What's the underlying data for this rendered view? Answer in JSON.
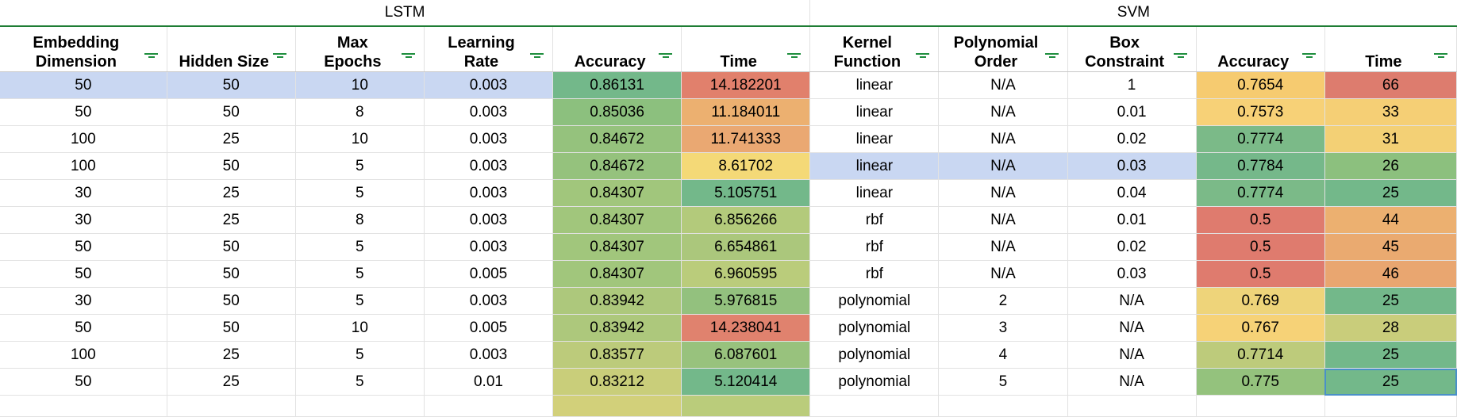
{
  "groups": [
    {
      "label": "LSTM",
      "span": 6
    },
    {
      "label": "SVM",
      "span": 5
    }
  ],
  "headers": [
    {
      "line1": "Embedding",
      "line2": "Dimension"
    },
    {
      "line1": "",
      "line2": "Hidden Size"
    },
    {
      "line1": "Max",
      "line2": "Epochs"
    },
    {
      "line1": "Learning",
      "line2": "Rate"
    },
    {
      "line1": "",
      "line2": "Accuracy"
    },
    {
      "line1": "",
      "line2": "Time"
    },
    {
      "line1": "Kernel",
      "line2": "Function"
    },
    {
      "line1": "Polynomial",
      "line2": "Order"
    },
    {
      "line1": "Box",
      "line2": "Constraint"
    },
    {
      "line1": "",
      "line2": "Accuracy"
    },
    {
      "line1": "",
      "line2": "Time"
    }
  ],
  "icons": {
    "filter": "filter-icon"
  },
  "colors": {
    "selection_fill": "#c9d7f2",
    "filter_icon": "#1e8e3e",
    "group_underline": "#1e7d34",
    "cell_outline": "#4a90c8"
  },
  "rows": [
    {
      "cells": [
        "50",
        "50",
        "10",
        "0.003",
        "0.86131",
        "14.182201",
        "linear",
        "N/A",
        "1",
        "0.7654",
        "66"
      ],
      "bg": [
        "#c9d7f2",
        "#c9d7f2",
        "#c9d7f2",
        "#c9d7f2",
        "#73b88a",
        "#e1806c",
        "",
        "",
        "",
        "#f6cb70",
        "#dd7c6e"
      ]
    },
    {
      "cells": [
        "50",
        "50",
        "8",
        "0.003",
        "0.85036",
        "11.184011",
        "linear",
        "N/A",
        "0.01",
        "0.7573",
        "33"
      ],
      "bg": [
        "",
        "",
        "",
        "",
        "#8cc07e",
        "#ecb070",
        "",
        "",
        "",
        "#f7d177",
        "#f5cf75"
      ]
    },
    {
      "cells": [
        "100",
        "25",
        "10",
        "0.003",
        "0.84672",
        "11.741333",
        "linear",
        "N/A",
        "0.02",
        "0.7774",
        "31"
      ],
      "bg": [
        "",
        "",
        "",
        "",
        "#95c27d",
        "#eaa872",
        "",
        "",
        "",
        "#7bba88",
        "#f3d075"
      ]
    },
    {
      "cells": [
        "100",
        "50",
        "5",
        "0.003",
        "0.84672",
        "8.61702",
        "linear",
        "N/A",
        "0.03",
        "0.7784",
        "26"
      ],
      "bg": [
        "",
        "",
        "",
        "",
        "#95c27d",
        "#f4d977",
        "#c9d7f2",
        "#c9d7f2",
        "#c9d7f2",
        "#75b88a",
        "#8cc07e"
      ]
    },
    {
      "cells": [
        "30",
        "25",
        "5",
        "0.003",
        "0.84307",
        "5.105751",
        "linear",
        "N/A",
        "0.04",
        "0.7774",
        "25"
      ],
      "bg": [
        "",
        "",
        "",
        "",
        "#a1c67c",
        "#73b88a",
        "",
        "",
        "",
        "#7bba88",
        "#73b88a"
      ]
    },
    {
      "cells": [
        "30",
        "25",
        "8",
        "0.003",
        "0.84307",
        "6.856266",
        "rbf",
        "N/A",
        "0.01",
        "0.5",
        "44"
      ],
      "bg": [
        "",
        "",
        "",
        "",
        "#a1c67c",
        "#b3ca7b",
        "",
        "",
        "",
        "#df7b6e",
        "#ecb070"
      ]
    },
    {
      "cells": [
        "50",
        "50",
        "5",
        "0.003",
        "0.84307",
        "6.654861",
        "rbf",
        "N/A",
        "0.02",
        "0.5",
        "45"
      ],
      "bg": [
        "",
        "",
        "",
        "",
        "#a1c67c",
        "#abc77c",
        "",
        "",
        "",
        "#df7b6e",
        "#eaaa70"
      ]
    },
    {
      "cells": [
        "50",
        "50",
        "5",
        "0.005",
        "0.84307",
        "6.960595",
        "rbf",
        "N/A",
        "0.03",
        "0.5",
        "46"
      ],
      "bg": [
        "",
        "",
        "",
        "",
        "#a1c67c",
        "#bacc7b",
        "",
        "",
        "",
        "#df7b6e",
        "#e9a670"
      ]
    },
    {
      "cells": [
        "30",
        "50",
        "5",
        "0.003",
        "0.83942",
        "5.976815",
        "polynomial",
        "2",
        "N/A",
        "0.769",
        "25"
      ],
      "bg": [
        "",
        "",
        "",
        "",
        "#adc87c",
        "#93c17e",
        "",
        "",
        "",
        "#eed47a",
        "#73b88a"
      ]
    },
    {
      "cells": [
        "50",
        "50",
        "10",
        "0.005",
        "0.83942",
        "14.238041",
        "polynomial",
        "3",
        "N/A",
        "0.767",
        "28"
      ],
      "bg": [
        "",
        "",
        "",
        "",
        "#adc87c",
        "#e0826e",
        "",
        "",
        "",
        "#f6d277",
        "#c9cd7b"
      ]
    },
    {
      "cells": [
        "100",
        "25",
        "5",
        "0.003",
        "0.83577",
        "6.087601",
        "polynomial",
        "4",
        "N/A",
        "0.7714",
        "25"
      ],
      "bg": [
        "",
        "",
        "",
        "",
        "#bccb7b",
        "#98c27d",
        "",
        "",
        "",
        "#bdcb7b",
        "#73b88a"
      ]
    },
    {
      "cells": [
        "50",
        "25",
        "5",
        "0.01",
        "0.83212",
        "5.120414",
        "polynomial",
        "5",
        "N/A",
        "0.775",
        "25"
      ],
      "bg": [
        "",
        "",
        "",
        "",
        "#c9ce7a",
        "#73b88a",
        "",
        "",
        "",
        "#94c27d",
        "#73b88a"
      ]
    },
    {
      "cells": [
        "",
        "",
        "",
        "",
        "",
        "",
        "",
        "",
        "",
        "",
        ""
      ],
      "bg": [
        "",
        "",
        "",
        "",
        "#d2d07a",
        "#bacc7b",
        "",
        "",
        "",
        "",
        ""
      ]
    }
  ]
}
